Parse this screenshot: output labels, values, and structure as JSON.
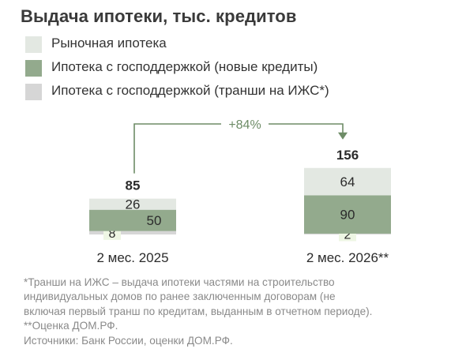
{
  "title": "Выдача ипотеки, тыс. кредитов",
  "legend": [
    {
      "label": "Рыночная ипотека",
      "color": "#e3e8e2"
    },
    {
      "label": "Ипотека с господдержкой (новые кредиты)",
      "color": "#93aa8d"
    },
    {
      "label": "Ипотека с господдержкой (транши на ИЖС*)",
      "color": "#d6d6d6"
    }
  ],
  "growth_label": "+84%",
  "chart_data": {
    "type": "bar",
    "stacked": true,
    "categories": [
      "2 мес. 2025",
      "2 мес. 2026**"
    ],
    "series": [
      {
        "name": "Ипотека с господдержкой (транши на ИЖС*)",
        "values": [
          8,
          2
        ],
        "color": "#d6d6d6",
        "label_color": "#2b2b2b",
        "label_bg": "#eef6e4"
      },
      {
        "name": "Ипотека с господдержкой (новые кредиты)",
        "values": [
          50,
          90
        ],
        "color": "#93aa8d",
        "label_color": "#2b2b2b"
      },
      {
        "name": "Рыночная ипотека",
        "values": [
          26,
          64
        ],
        "color": "#e3e8e2",
        "label_color": "#2b2b2b"
      }
    ],
    "totals": [
      85,
      156
    ],
    "title": "Выдача ипотеки, тыс. кредитов",
    "xlabel": "",
    "ylabel": "",
    "ylim": [
      0,
      160
    ],
    "grid": false,
    "legend_position": "top-left"
  },
  "notes": [
    "*Транши на ИЖС – выдача ипотеки частями на строительство",
    "индивидуальных домов по ранее заключенным договорам (не",
    "включая первый транш по кредитам, выданным в отчетном периоде).",
    "**Оценка ДОМ.РФ.",
    "Источники: Банк России, оценки ДОМ.РФ."
  ],
  "colors": {
    "arrow": "#6e8c67",
    "text": "#2b2b2b",
    "muted": "#8a8a8a"
  }
}
